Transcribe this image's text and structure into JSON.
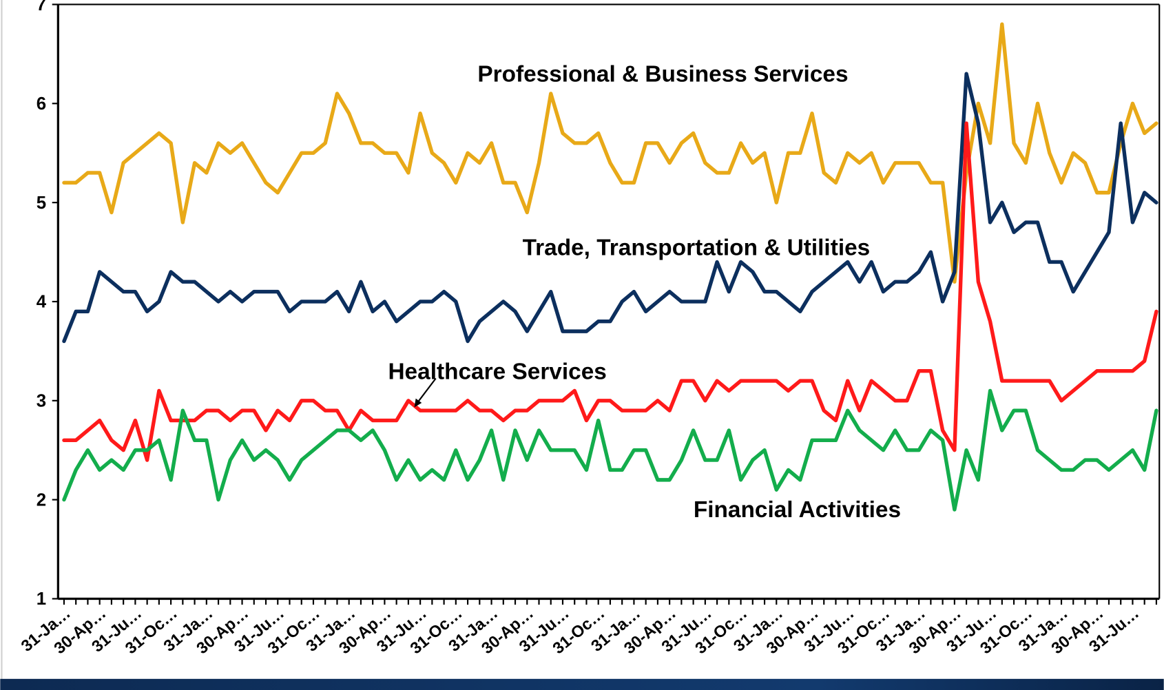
{
  "chart_data": {
    "type": "line",
    "categories": [
      "31-Ja…",
      null,
      null,
      "30-Ap…",
      null,
      null,
      "31-Ju…",
      null,
      null,
      "31-Oc…",
      null,
      null,
      "31-Ja…",
      null,
      null,
      "30-Ap…",
      null,
      null,
      "31-Ju…",
      null,
      null,
      "31-Oc…",
      null,
      null,
      "31-Ja…",
      null,
      null,
      "30-Ap…",
      null,
      null,
      "31-Ju…",
      null,
      null,
      "31-Oc…",
      null,
      null,
      "31-Ja…",
      null,
      null,
      "30-Ap…",
      null,
      null,
      "31-Ju…",
      null,
      null,
      "31-Oc…",
      null,
      null,
      "31-Ja…",
      null,
      null,
      "30-Ap…",
      null,
      null,
      "31-Ju…",
      null,
      null,
      "31-Oc…",
      null,
      null,
      "31-Ja…",
      null,
      null,
      "30-Ap…",
      null,
      null,
      "31-Ju…",
      null,
      null,
      "31-Oc…",
      null,
      null,
      "31-Ja…",
      null,
      null,
      "30-Ap…",
      null,
      null,
      "31-Ju…",
      null,
      null,
      "31-Oc…",
      null,
      null,
      "31-Ja…",
      null,
      null,
      "30-Ap…",
      null,
      null,
      "31-Ju…",
      null,
      null
    ],
    "series": [
      {
        "name": "Professional & Business Services",
        "color": "#e8a918",
        "values": [
          5.2,
          5.2,
          5.3,
          5.3,
          4.9,
          5.4,
          5.5,
          5.6,
          5.7,
          5.6,
          4.8,
          5.4,
          5.3,
          5.6,
          5.5,
          5.6,
          5.4,
          5.2,
          5.1,
          5.3,
          5.5,
          5.5,
          5.6,
          6.1,
          5.9,
          5.6,
          5.6,
          5.5,
          5.5,
          5.3,
          5.9,
          5.5,
          5.4,
          5.2,
          5.5,
          5.4,
          5.6,
          5.2,
          5.2,
          4.9,
          5.4,
          6.1,
          5.7,
          5.6,
          5.6,
          5.7,
          5.4,
          5.2,
          5.2,
          5.6,
          5.6,
          5.4,
          5.6,
          5.7,
          5.4,
          5.3,
          5.3,
          5.6,
          5.4,
          5.5,
          5.0,
          5.5,
          5.5,
          5.9,
          5.3,
          5.2,
          5.5,
          5.4,
          5.5,
          5.2,
          5.4,
          5.4,
          5.4,
          5.2,
          5.2,
          4.2,
          5.3,
          6.0,
          5.6,
          6.8,
          5.6,
          5.4,
          6.0,
          5.5,
          5.2,
          5.5,
          5.4,
          5.1,
          5.1,
          5.6,
          6.0,
          5.7,
          5.8
        ]
      },
      {
        "name": "Trade, Transportation & Utilities",
        "color": "#0c2f5e",
        "values": [
          3.6,
          3.9,
          3.9,
          4.3,
          4.2,
          4.1,
          4.1,
          3.9,
          4.0,
          4.3,
          4.2,
          4.2,
          4.1,
          4.0,
          4.1,
          4.0,
          4.1,
          4.1,
          4.1,
          3.9,
          4.0,
          4.0,
          4.0,
          4.1,
          3.9,
          4.2,
          3.9,
          4.0,
          3.8,
          3.9,
          4.0,
          4.0,
          4.1,
          4.0,
          3.6,
          3.8,
          3.9,
          4.0,
          3.9,
          3.7,
          3.9,
          4.1,
          3.7,
          3.7,
          3.7,
          3.8,
          3.8,
          4.0,
          4.1,
          3.9,
          4.0,
          4.1,
          4.0,
          4.0,
          4.0,
          4.4,
          4.1,
          4.4,
          4.3,
          4.1,
          4.1,
          4.0,
          3.9,
          4.1,
          4.2,
          4.3,
          4.4,
          4.2,
          4.4,
          4.1,
          4.2,
          4.2,
          4.3,
          4.5,
          4.0,
          4.3,
          6.3,
          5.8,
          4.8,
          5.0,
          4.7,
          4.8,
          4.8,
          4.4,
          4.4,
          4.1,
          4.3,
          4.5,
          4.7,
          5.8,
          4.8,
          5.1,
          5.0
        ]
      },
      {
        "name": "Healthcare Services",
        "color": "#ff1a1a",
        "values": [
          2.6,
          2.6,
          2.7,
          2.8,
          2.6,
          2.5,
          2.8,
          2.4,
          3.1,
          2.8,
          2.8,
          2.8,
          2.9,
          2.9,
          2.8,
          2.9,
          2.9,
          2.7,
          2.9,
          2.8,
          3.0,
          3.0,
          2.9,
          2.9,
          2.7,
          2.9,
          2.8,
          2.8,
          2.8,
          3.0,
          2.9,
          2.9,
          2.9,
          2.9,
          3.0,
          2.9,
          2.9,
          2.8,
          2.9,
          2.9,
          3.0,
          3.0,
          3.0,
          3.1,
          2.8,
          3.0,
          3.0,
          2.9,
          2.9,
          2.9,
          3.0,
          2.9,
          3.2,
          3.2,
          3.0,
          3.2,
          3.1,
          3.2,
          3.2,
          3.2,
          3.2,
          3.1,
          3.2,
          3.2,
          2.9,
          2.8,
          3.2,
          2.9,
          3.2,
          3.1,
          3.0,
          3.0,
          3.3,
          3.3,
          2.7,
          2.5,
          5.8,
          4.2,
          3.8,
          3.2,
          3.2,
          3.2,
          3.2,
          3.2,
          3.0,
          3.1,
          3.2,
          3.3,
          3.3,
          3.3,
          3.3,
          3.4,
          3.9
        ]
      },
      {
        "name": "Financial Activities",
        "color": "#13ad4c",
        "values": [
          2.0,
          2.3,
          2.5,
          2.3,
          2.4,
          2.3,
          2.5,
          2.5,
          2.6,
          2.2,
          2.9,
          2.6,
          2.6,
          2.0,
          2.4,
          2.6,
          2.4,
          2.5,
          2.4,
          2.2,
          2.4,
          2.5,
          2.6,
          2.7,
          2.7,
          2.6,
          2.7,
          2.5,
          2.2,
          2.4,
          2.2,
          2.3,
          2.2,
          2.5,
          2.2,
          2.4,
          2.7,
          2.2,
          2.7,
          2.4,
          2.7,
          2.5,
          2.5,
          2.5,
          2.3,
          2.8,
          2.3,
          2.3,
          2.5,
          2.5,
          2.2,
          2.2,
          2.4,
          2.7,
          2.4,
          2.4,
          2.7,
          2.2,
          2.4,
          2.5,
          2.1,
          2.3,
          2.2,
          2.6,
          2.6,
          2.6,
          2.9,
          2.7,
          2.6,
          2.5,
          2.7,
          2.5,
          2.5,
          2.7,
          2.6,
          1.9,
          2.5,
          2.2,
          3.1,
          2.7,
          2.9,
          2.9,
          2.5,
          2.4,
          2.3,
          2.3,
          2.4,
          2.4,
          2.3,
          2.4,
          2.5,
          2.3,
          2.9
        ]
      }
    ],
    "ylim": [
      1,
      7
    ],
    "yticks": [
      1,
      2,
      3,
      4,
      5,
      6,
      7
    ],
    "grid": false
  }
}
